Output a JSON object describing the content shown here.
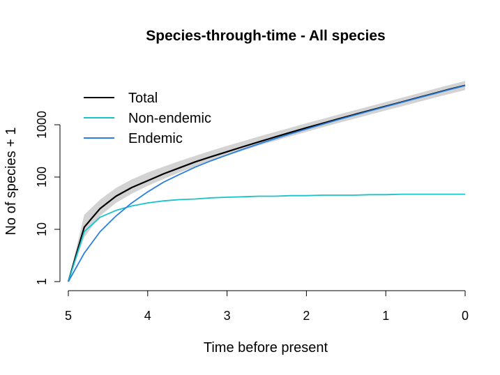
{
  "chart_data": {
    "type": "line",
    "title": "Species-through-time - All species",
    "xlabel": "Time before present",
    "ylabel": "No of species + 1",
    "x_reversed": true,
    "xlim": [
      5,
      0
    ],
    "x_ticks": [
      5,
      4,
      3,
      2,
      1,
      0
    ],
    "x_tick_labels": [
      "5",
      "4",
      "3",
      "2",
      "1",
      "0"
    ],
    "y_scale": "log",
    "ylim": [
      1,
      10000
    ],
    "y_ticks": [
      1,
      10,
      100,
      1000
    ],
    "y_tick_labels": [
      "1",
      "10",
      "100",
      "1000"
    ],
    "legend_position": "top-left",
    "grid": false,
    "x": [
      5.0,
      4.8,
      4.6,
      4.4,
      4.2,
      4.0,
      3.8,
      3.6,
      3.4,
      3.2,
      3.0,
      2.8,
      2.6,
      2.4,
      2.2,
      2.0,
      1.8,
      1.6,
      1.4,
      1.2,
      1.0,
      0.8,
      0.6,
      0.4,
      0.2,
      0.0
    ],
    "confidence_band": {
      "color": "#d3d3d3",
      "lower": [
        1,
        7,
        18,
        32,
        48,
        68,
        92,
        122,
        158,
        202,
        255,
        320,
        400,
        490,
        600,
        730,
        890,
        1080,
        1300,
        1560,
        1880,
        2250,
        2700,
        3250,
        3900,
        4600
      ],
      "upper": [
        1,
        19,
        37,
        62,
        90,
        122,
        158,
        202,
        255,
        318,
        395,
        485,
        595,
        725,
        880,
        1070,
        1290,
        1560,
        1880,
        2260,
        2720,
        3280,
        3960,
        4780,
        5750,
        6900
      ]
    },
    "series": [
      {
        "name": "Total",
        "color": "#000000",
        "values": [
          1,
          11,
          25,
          43,
          63,
          85,
          115,
          150,
          195,
          245,
          305,
          380,
          470,
          580,
          715,
          875,
          1060,
          1290,
          1560,
          1880,
          2260,
          2720,
          3280,
          3950,
          4750,
          5650
        ]
      },
      {
        "name": "Non-endemic",
        "color": "#17c3c8",
        "values": [
          1,
          9,
          17,
          23,
          28,
          32,
          35,
          37,
          38,
          40,
          41,
          42,
          43,
          43,
          44,
          44,
          45,
          45,
          45,
          46,
          46,
          47,
          47,
          47,
          47,
          47
        ]
      },
      {
        "name": "Endemic",
        "color": "#2a7fe0",
        "values": [
          1,
          3.5,
          9,
          18,
          32,
          52,
          80,
          112,
          155,
          205,
          265,
          340,
          430,
          540,
          670,
          830,
          1020,
          1250,
          1520,
          1840,
          2220,
          2680,
          3230,
          3900,
          4700,
          5600
        ]
      }
    ]
  }
}
